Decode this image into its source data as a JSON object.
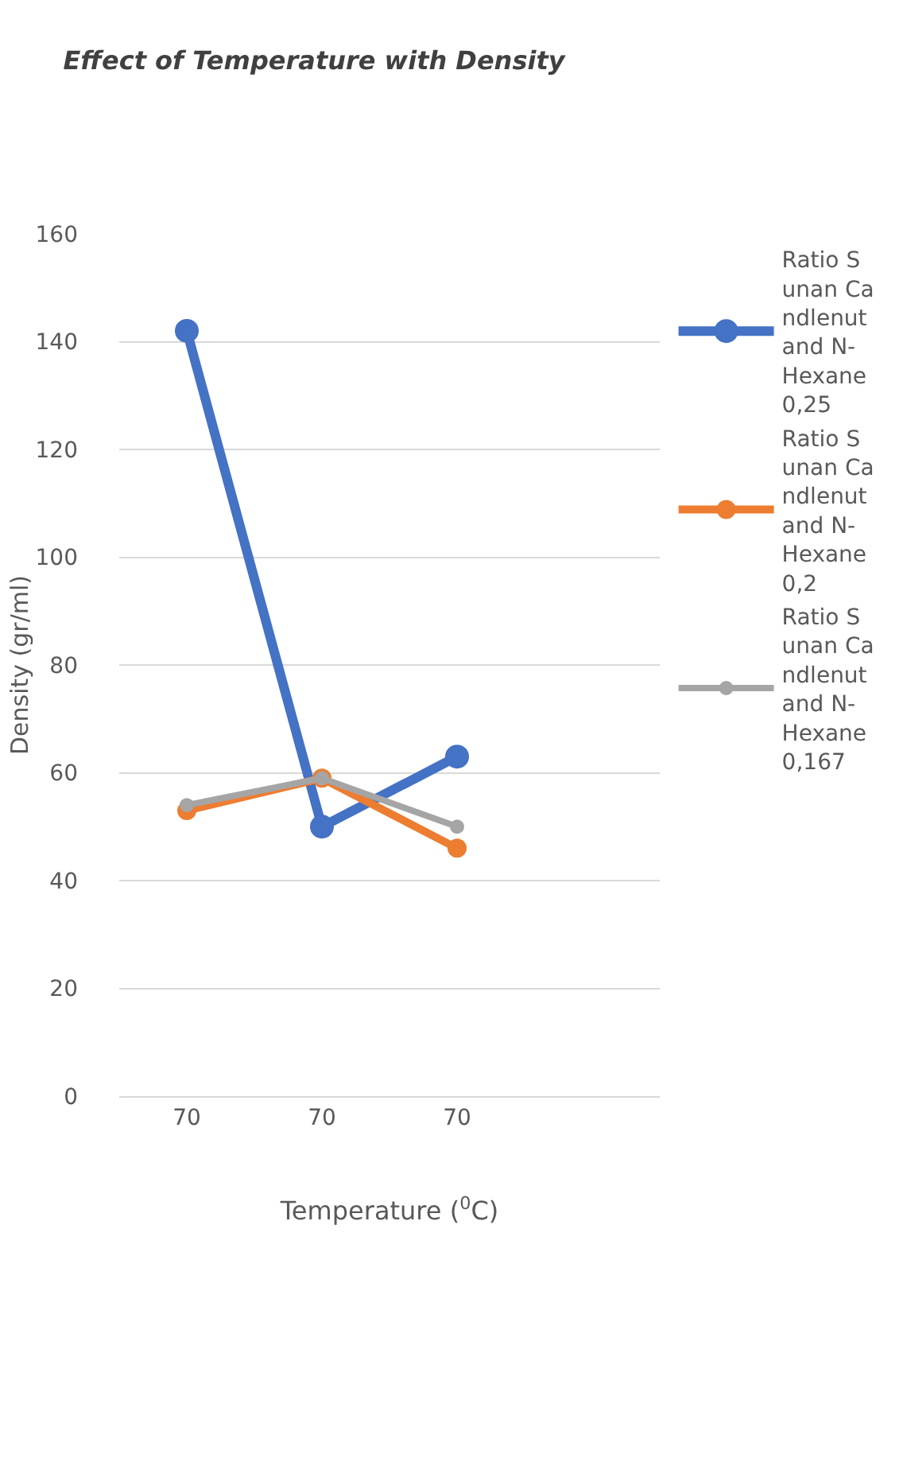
{
  "chart_data": {
    "type": "line",
    "title": "Effect of Temperature with Density",
    "xlabel": "Temperature ($^{0}$C)",
    "ylabel": "Density (gr/ml)",
    "categories": [
      "70",
      "70",
      "70",
      null
    ],
    "series": [
      {
        "name": "Ratio Sunan Candlenut and N-Hexane 0,25",
        "color": "#4472c4",
        "values": [
          142,
          50,
          63,
          null
        ]
      },
      {
        "name": "Ratio Sunan Candlenut and N-Hexane  0,2",
        "color": "#ed7d31",
        "values": [
          53,
          59,
          46,
          null
        ]
      },
      {
        "name": "Ratio Sunan Candlenut and N-Hexane 0,167",
        "color": "#a5a5a5",
        "values": [
          54,
          59,
          50,
          null
        ]
      }
    ],
    "ylim": [
      0,
      160
    ],
    "yticks": [
      0,
      20,
      40,
      60,
      80,
      100,
      120,
      140,
      160
    ],
    "grid": "y",
    "legend": "right",
    "marker": "circle",
    "line_style": "solid"
  }
}
